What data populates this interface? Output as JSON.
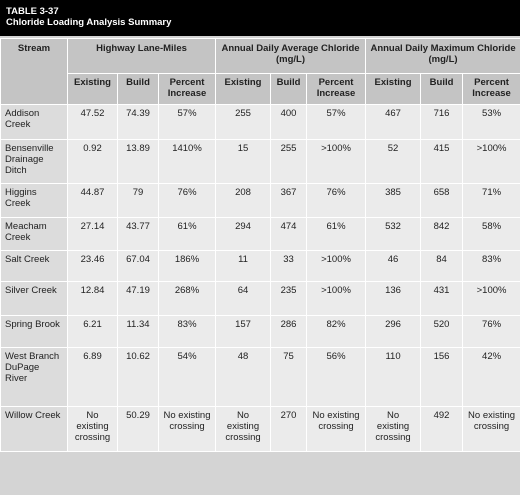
{
  "table": {
    "title": [
      "TABLE 3-37",
      "Chloride Loading Analysis Summary"
    ],
    "stream_header": "Stream",
    "groups": [
      "Highway Lane-Miles",
      "Annual Daily Average Chloride (mg/L)",
      "Annual Daily Maximum Chloride (mg/L)"
    ],
    "subheaders": [
      "Existing",
      "Build",
      "Percent Increase"
    ],
    "rows": [
      [
        "Addison Creek",
        "47.52",
        "74.39",
        "57%",
        "255",
        "400",
        "57%",
        "467",
        "716",
        "53%"
      ],
      [
        "Bensenville Drainage Ditch",
        "0.92",
        "13.89",
        "1410%",
        "15",
        "255",
        ">100%",
        "52",
        "415",
        ">100%"
      ],
      [
        "Higgins Creek",
        "44.87",
        "79",
        "76%",
        "208",
        "367",
        "76%",
        "385",
        "658",
        "71%"
      ],
      [
        "Meacham Creek",
        "27.14",
        "43.77",
        "61%",
        "294",
        "474",
        "61%",
        "532",
        "842",
        "58%"
      ],
      [
        "Salt Creek",
        "23.46",
        "67.04",
        "186%",
        "11",
        "33",
        ">100%",
        "46",
        "84",
        "83%"
      ],
      [
        "Silver Creek",
        "12.84",
        "47.19",
        "268%",
        "64",
        "235",
        ">100%",
        "136",
        "431",
        ">100%"
      ],
      [
        "Spring Brook",
        "6.21",
        "11.34",
        "83%",
        "157",
        "286",
        "82%",
        "296",
        "520",
        "76%"
      ],
      [
        "West Branch DuPage River",
        "6.89",
        "10.62",
        "54%",
        "48",
        "75",
        "56%",
        "110",
        "156",
        "42%"
      ],
      [
        "Willow Creek",
        "No existing crossing",
        "50.29",
        "No existing crossing",
        "No existing crossing",
        "270",
        "No existing crossing",
        "No existing crossing",
        "492",
        "No existing crossing"
      ]
    ]
  }
}
